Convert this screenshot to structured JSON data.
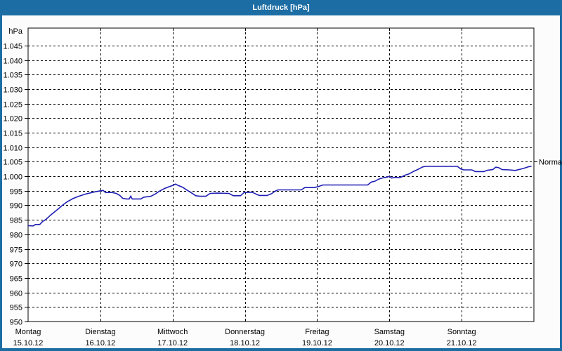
{
  "window": {
    "title": "Luftdruck [hPa]",
    "chrome_color": "#1c6da4",
    "title_text_color": "#ffffff",
    "content_background": "#fcfcfc"
  },
  "chart_data": {
    "type": "line",
    "title": "Luftdruck [hPa]",
    "y_unit_label": "hPa",
    "ylim": [
      950,
      1051
    ],
    "ytick_interval": 5,
    "yticks": [
      950,
      955,
      960,
      965,
      970,
      975,
      980,
      985,
      990,
      995,
      1000,
      1005,
      1010,
      1015,
      1020,
      1025,
      1030,
      1035,
      1040,
      1045
    ],
    "ytick_labels": [
      "950",
      "955",
      "960",
      "965",
      "970",
      "975",
      "980",
      "985",
      "990",
      "995",
      "1.000",
      "1.005",
      "1.010",
      "1.015",
      "1.020",
      "1.025",
      "1.030",
      "1.035",
      "1.040",
      "1.045"
    ],
    "grid": true,
    "legend_position": "right-annotation",
    "x_axis_days": [
      {
        "name": "Montag",
        "date": "15.10.12"
      },
      {
        "name": "Dienstag",
        "date": "16.10.12"
      },
      {
        "name": "Mittwoch",
        "date": "17.10.12"
      },
      {
        "name": "Donnerstag",
        "date": "18.10.12"
      },
      {
        "name": "Freitag",
        "date": "19.10.12"
      },
      {
        "name": "Samstag",
        "date": "20.10.12"
      },
      {
        "name": "Sonntag",
        "date": "21.10.12"
      }
    ],
    "normal_marker": {
      "label": "Normal",
      "value": 1005
    },
    "line_color": "#1e1eb4",
    "grid_color": "#000000",
    "axis_color": "#000000",
    "series": [
      {
        "name": "Luftdruck",
        "x_unit": "days_since_monday_start",
        "y_unit": "hPa",
        "points": [
          [
            0.0,
            983.0
          ],
          [
            0.07,
            982.9
          ],
          [
            0.1,
            983.4
          ],
          [
            0.16,
            983.4
          ],
          [
            0.2,
            984.4
          ],
          [
            0.25,
            985.2
          ],
          [
            0.3,
            986.4
          ],
          [
            0.36,
            987.6
          ],
          [
            0.42,
            988.8
          ],
          [
            0.48,
            990.1
          ],
          [
            0.54,
            991.2
          ],
          [
            0.62,
            992.3
          ],
          [
            0.7,
            993.1
          ],
          [
            0.8,
            993.9
          ],
          [
            0.9,
            994.5
          ],
          [
            1.0,
            995.0
          ],
          [
            1.04,
            995.1
          ],
          [
            1.07,
            994.4
          ],
          [
            1.16,
            994.4
          ],
          [
            1.22,
            994.1
          ],
          [
            1.27,
            993.4
          ],
          [
            1.31,
            992.4
          ],
          [
            1.36,
            992.2
          ],
          [
            1.4,
            992.2
          ],
          [
            1.42,
            993.2
          ],
          [
            1.44,
            992.2
          ],
          [
            1.56,
            992.2
          ],
          [
            1.6,
            992.8
          ],
          [
            1.7,
            993.1
          ],
          [
            1.76,
            993.9
          ],
          [
            1.82,
            994.9
          ],
          [
            1.88,
            995.7
          ],
          [
            1.94,
            996.3
          ],
          [
            2.0,
            996.8
          ],
          [
            2.04,
            997.3
          ],
          [
            2.08,
            996.8
          ],
          [
            2.14,
            996.2
          ],
          [
            2.2,
            995.2
          ],
          [
            2.26,
            994.3
          ],
          [
            2.32,
            993.3
          ],
          [
            2.38,
            993.1
          ],
          [
            2.46,
            993.1
          ],
          [
            2.52,
            994.1
          ],
          [
            2.62,
            994.2
          ],
          [
            2.78,
            994.1
          ],
          [
            2.84,
            993.3
          ],
          [
            2.94,
            993.3
          ],
          [
            2.99,
            994.4
          ],
          [
            3.1,
            994.5
          ],
          [
            3.16,
            993.8
          ],
          [
            3.2,
            993.4
          ],
          [
            3.31,
            993.4
          ],
          [
            3.37,
            994.0
          ],
          [
            3.42,
            994.9
          ],
          [
            3.46,
            995.3
          ],
          [
            3.78,
            995.3
          ],
          [
            3.83,
            996.1
          ],
          [
            3.96,
            996.1
          ],
          [
            4.02,
            996.5
          ],
          [
            4.08,
            997.0
          ],
          [
            4.4,
            997.0
          ],
          [
            4.7,
            997.0
          ],
          [
            4.75,
            998.0
          ],
          [
            4.8,
            998.3
          ],
          [
            4.86,
            999.1
          ],
          [
            4.92,
            999.5
          ],
          [
            4.97,
            999.7
          ],
          [
            5.0,
            1000.0
          ],
          [
            5.03,
            999.4
          ],
          [
            5.08,
            999.6
          ],
          [
            5.14,
            999.5
          ],
          [
            5.18,
            999.9
          ],
          [
            5.21,
            1000.3
          ],
          [
            5.27,
            1000.8
          ],
          [
            5.33,
            1001.6
          ],
          [
            5.4,
            1002.4
          ],
          [
            5.46,
            1003.2
          ],
          [
            5.5,
            1003.4
          ],
          [
            5.94,
            1003.4
          ],
          [
            5.99,
            1002.5
          ],
          [
            6.03,
            1002.2
          ],
          [
            6.14,
            1002.2
          ],
          [
            6.19,
            1001.6
          ],
          [
            6.31,
            1001.6
          ],
          [
            6.36,
            1002.1
          ],
          [
            6.43,
            1002.3
          ],
          [
            6.47,
            1003.1
          ],
          [
            6.51,
            1003.0
          ],
          [
            6.56,
            1002.3
          ],
          [
            6.66,
            1002.2
          ],
          [
            6.74,
            1002.0
          ],
          [
            6.81,
            1002.4
          ],
          [
            6.88,
            1002.9
          ],
          [
            6.93,
            1003.3
          ],
          [
            6.96,
            1003.4
          ]
        ]
      }
    ]
  }
}
